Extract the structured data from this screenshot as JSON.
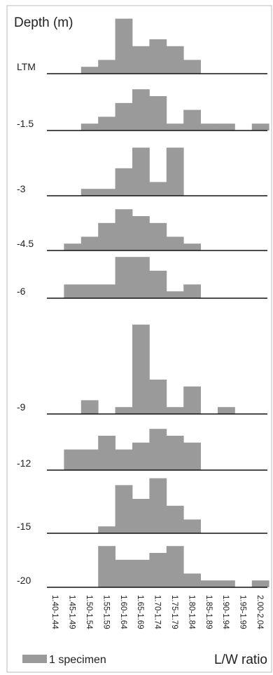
{
  "chart_data": {
    "type": "bar",
    "title": "",
    "ylabel": "Depth (m)",
    "xlabel": "L/W ratio",
    "legend": {
      "label": "1 specimen",
      "placement": "bottom-left"
    },
    "colors": {
      "bar": "#9a9a9a",
      "baseline": "#111111",
      "frame": "#bbbbbb"
    },
    "categories": [
      "1.40-1.44",
      "1.45-1.49",
      "1.50-1.54",
      "1.55-1.59",
      "1.60-1.64",
      "1.65-1.69",
      "1.70-1.74",
      "1.75-1.79",
      "1.80-1.84",
      "1.85-1.89",
      "1.90-1.94",
      "1.95-1.99",
      "2.00-2.04"
    ],
    "ylim": [
      0,
      16
    ],
    "series": [
      {
        "name": "LTM",
        "values": [
          0,
          0,
          1,
          2,
          8,
          4,
          5,
          4,
          2,
          0,
          0,
          0,
          0
        ]
      },
      {
        "name": "-1.5",
        "values": [
          0,
          0,
          1,
          2,
          4,
          6,
          5,
          1,
          3,
          1,
          1,
          0,
          1
        ]
      },
      {
        "name": "-3",
        "values": [
          0,
          0,
          1,
          1,
          4,
          7,
          2,
          7,
          0,
          0,
          0,
          0,
          0
        ]
      },
      {
        "name": "-4.5",
        "values": [
          0,
          1,
          2,
          4,
          6,
          5,
          4,
          2,
          1,
          0,
          0,
          0,
          0
        ]
      },
      {
        "name": "-6",
        "values": [
          0,
          2,
          2,
          2,
          6,
          6,
          4,
          1,
          2,
          0,
          0,
          0,
          0
        ]
      },
      {
        "name": "-9",
        "values": [
          0,
          0,
          2,
          0,
          1,
          13,
          5,
          1,
          4,
          0,
          1,
          0,
          0
        ]
      },
      {
        "name": "-12",
        "values": [
          0,
          3,
          3,
          5,
          3,
          4,
          6,
          5,
          4,
          0,
          0,
          0,
          0
        ]
      },
      {
        "name": "-15",
        "values": [
          0,
          0,
          0,
          1,
          7,
          5,
          8,
          4,
          2,
          0,
          0,
          0,
          0
        ]
      },
      {
        "name": "-20",
        "values": [
          0,
          0,
          0,
          6,
          4,
          4,
          5,
          6,
          2,
          1,
          1,
          0,
          1
        ]
      }
    ]
  }
}
